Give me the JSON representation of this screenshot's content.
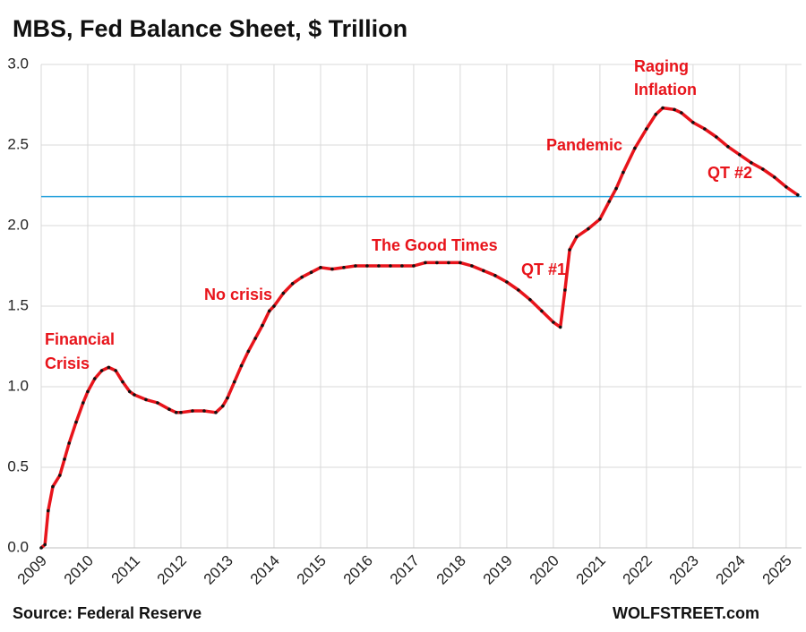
{
  "chart_data": {
    "type": "line",
    "title": "MBS, Fed Balance Sheet, $ Trillion",
    "source": "Source: Federal Reserve",
    "credit": "WOLFSTREET.com",
    "annotations": [
      "Financial",
      "Crisis",
      "No crisis",
      "The Good Times",
      "QT #1",
      "Pandemic",
      "Raging",
      "Inflation",
      "QT #2"
    ],
    "reference_line": {
      "value": 2.18,
      "color": "#29a3dc"
    },
    "grid": true,
    "xlim": [
      2009,
      2025.33
    ],
    "xticks": [
      2009,
      2010,
      2011,
      2012,
      2013,
      2014,
      2015,
      2016,
      2017,
      2018,
      2019,
      2020,
      2021,
      2022,
      2023,
      2024,
      2025
    ],
    "ylim": [
      0,
      3
    ],
    "yticks": [
      {
        "value": 0,
        "label": "0.0"
      },
      {
        "value": 0.5,
        "label": "0.5"
      },
      {
        "value": 1,
        "label": "1.0"
      },
      {
        "value": 1.5,
        "label": "1.5"
      },
      {
        "value": 2,
        "label": "2.0"
      },
      {
        "value": 2.5,
        "label": "2.5"
      },
      {
        "value": 3,
        "label": "3.0"
      }
    ],
    "x": [
      2009.0,
      2009.08,
      2009.15,
      2009.25,
      2009.4,
      2009.5,
      2009.6,
      2009.75,
      2009.9,
      2010.0,
      2010.15,
      2010.3,
      2010.45,
      2010.6,
      2010.75,
      2010.9,
      2011.0,
      2011.25,
      2011.5,
      2011.75,
      2011.9,
      2012.0,
      2012.25,
      2012.5,
      2012.75,
      2012.9,
      2013.0,
      2013.15,
      2013.3,
      2013.45,
      2013.6,
      2013.75,
      2013.9,
      2014.0,
      2014.2,
      2014.4,
      2014.6,
      2014.8,
      2015.0,
      2015.25,
      2015.5,
      2015.75,
      2016.0,
      2016.25,
      2016.5,
      2016.75,
      2017.0,
      2017.25,
      2017.5,
      2017.75,
      2018.0,
      2018.25,
      2018.5,
      2018.75,
      2019.0,
      2019.25,
      2019.5,
      2019.75,
      2020.0,
      2020.15,
      2020.25,
      2020.35,
      2020.5,
      2020.75,
      2021.0,
      2021.2,
      2021.35,
      2021.5,
      2021.75,
      2022.0,
      2022.2,
      2022.35,
      2022.6,
      2022.75,
      2023.0,
      2023.25,
      2023.5,
      2023.75,
      2024.0,
      2024.25,
      2024.5,
      2024.75,
      2025.0,
      2025.25
    ],
    "series": [
      {
        "name": "MBS",
        "color": "#e8141b",
        "marker_color": "#111111",
        "values": [
          0.0,
          0.02,
          0.23,
          0.38,
          0.45,
          0.55,
          0.65,
          0.78,
          0.9,
          0.97,
          1.05,
          1.1,
          1.12,
          1.1,
          1.03,
          0.97,
          0.95,
          0.92,
          0.9,
          0.86,
          0.84,
          0.84,
          0.85,
          0.85,
          0.84,
          0.88,
          0.93,
          1.03,
          1.13,
          1.22,
          1.3,
          1.38,
          1.47,
          1.5,
          1.58,
          1.64,
          1.68,
          1.71,
          1.74,
          1.73,
          1.74,
          1.75,
          1.75,
          1.75,
          1.75,
          1.75,
          1.75,
          1.77,
          1.77,
          1.77,
          1.77,
          1.75,
          1.72,
          1.69,
          1.65,
          1.6,
          1.54,
          1.47,
          1.4,
          1.37,
          1.6,
          1.85,
          1.93,
          1.98,
          2.04,
          2.15,
          2.23,
          2.33,
          2.48,
          2.6,
          2.69,
          2.73,
          2.72,
          2.7,
          2.64,
          2.6,
          2.55,
          2.49,
          2.44,
          2.39,
          2.35,
          2.3,
          2.24,
          2.19
        ]
      }
    ]
  }
}
